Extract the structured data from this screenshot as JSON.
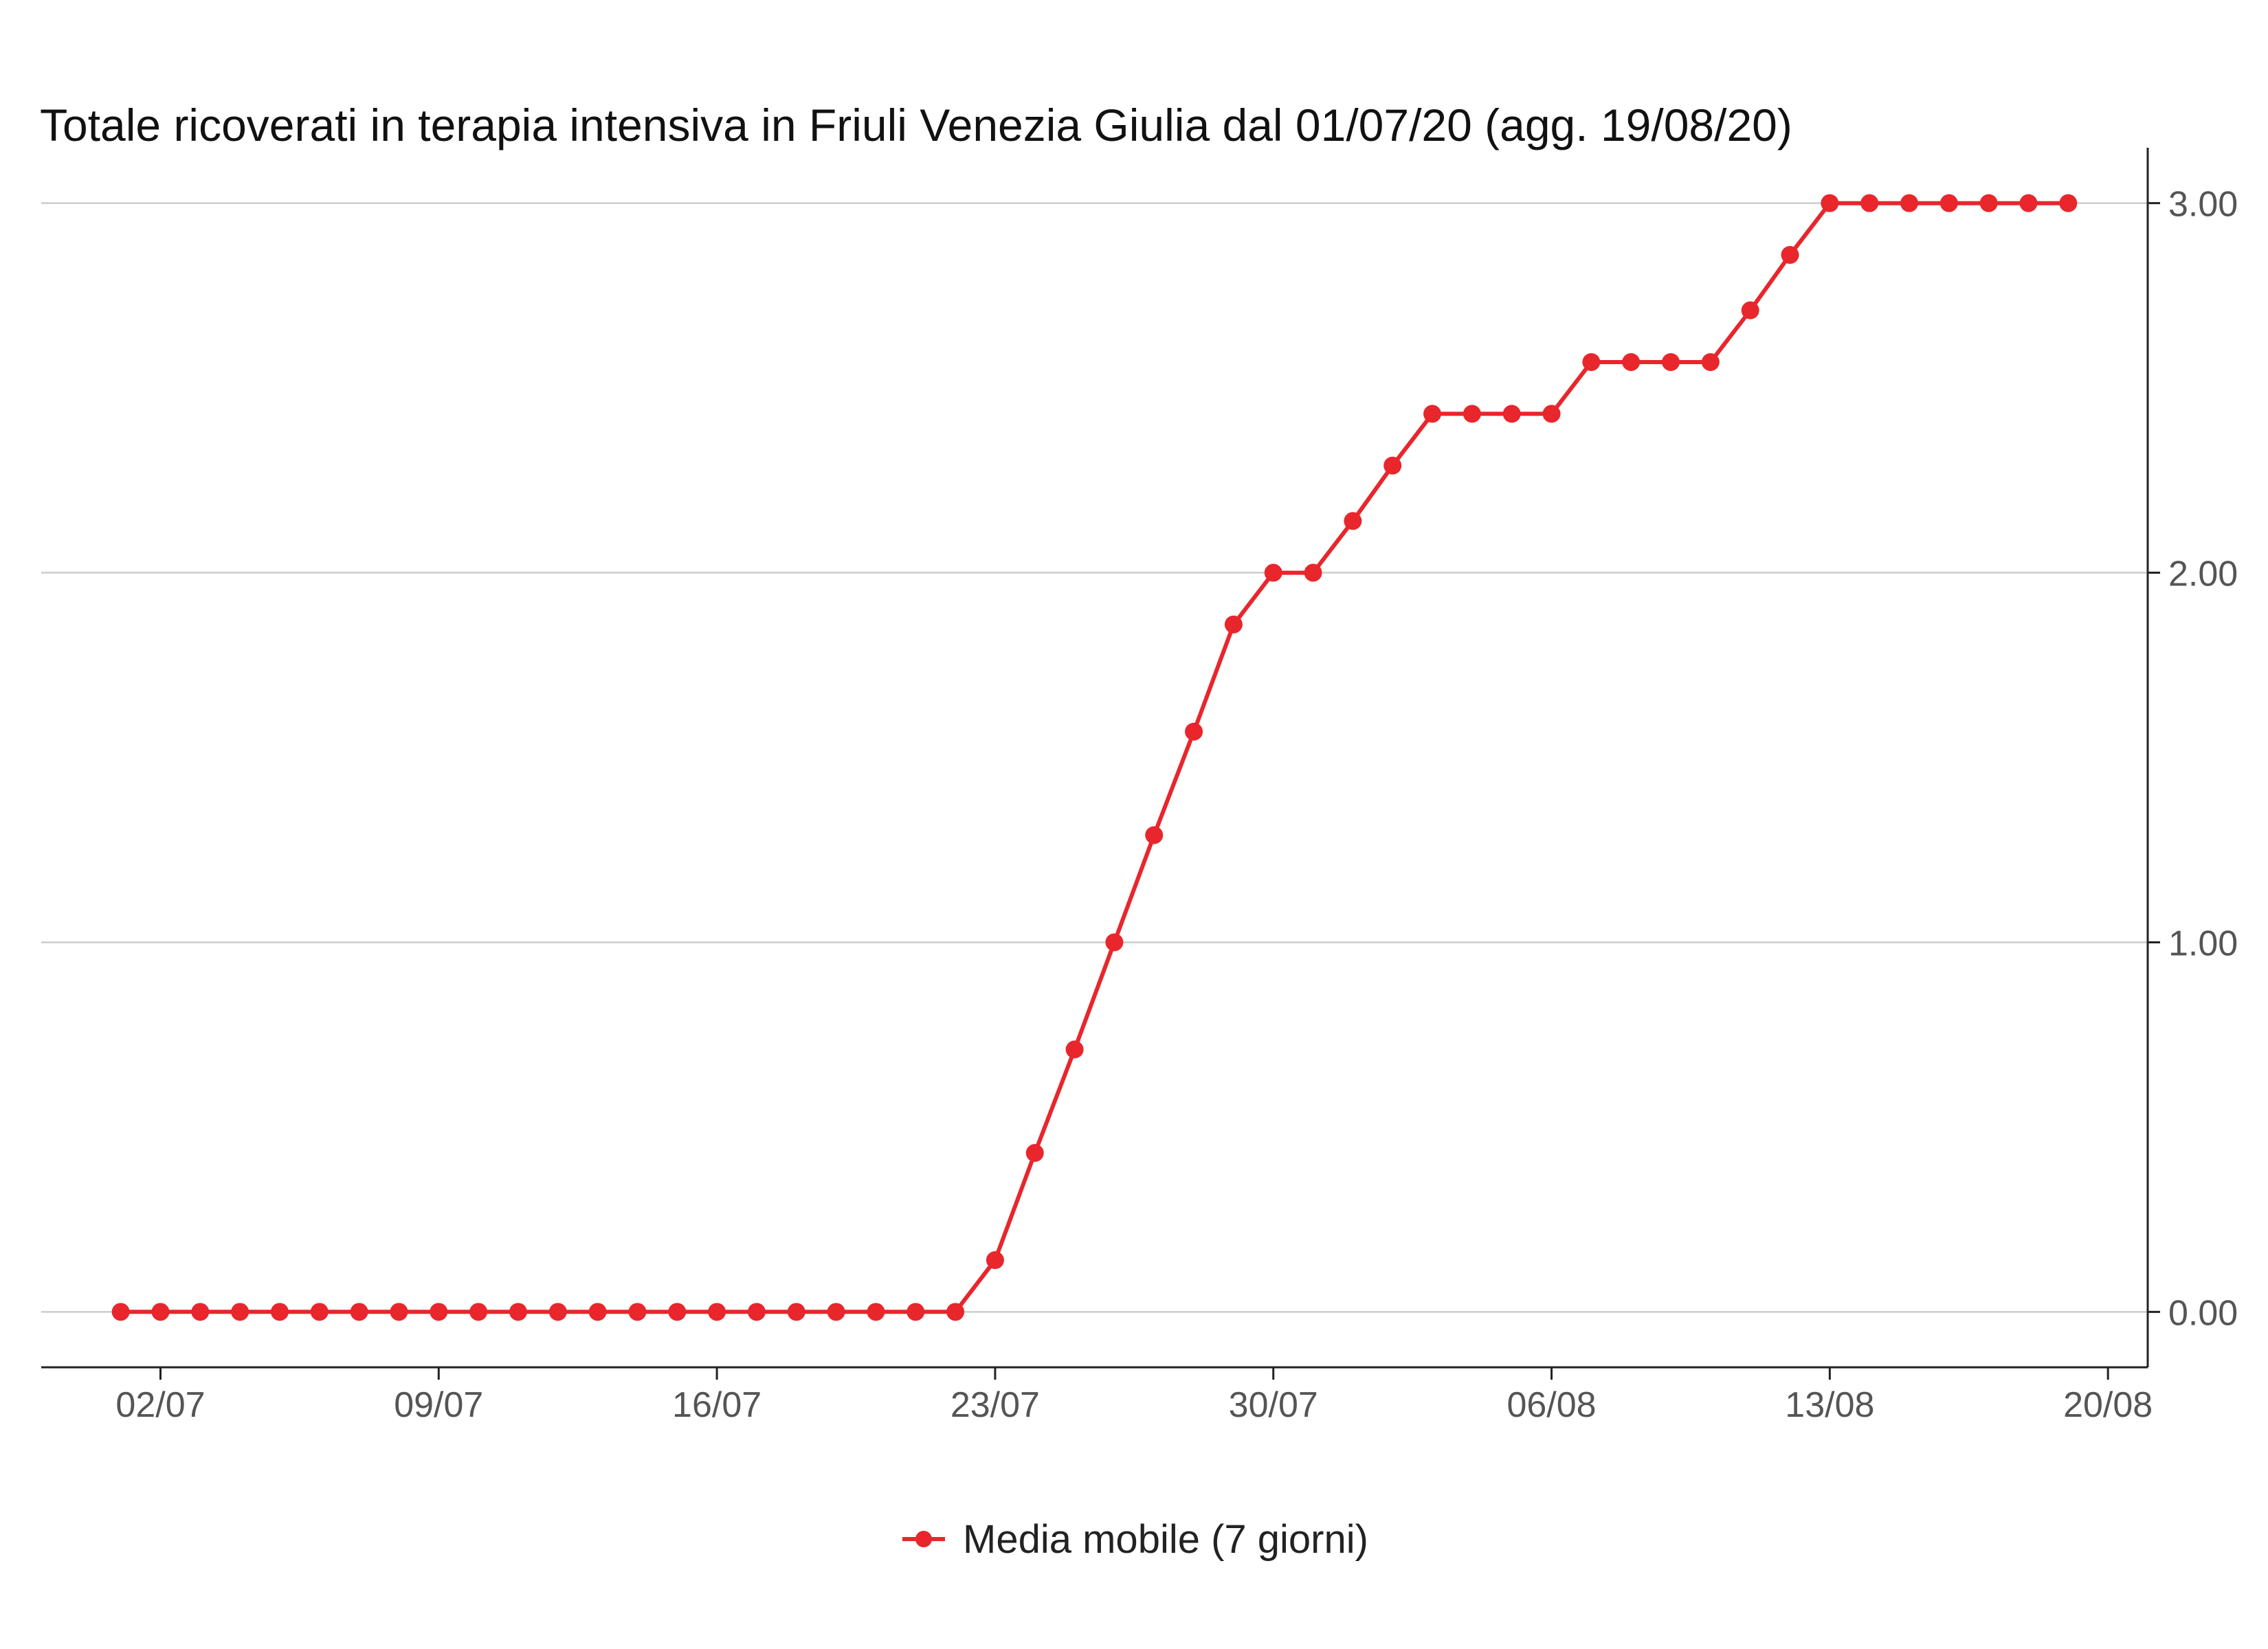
{
  "chart_data": {
    "type": "line",
    "title": "Totale ricoverati in terapia intensiva in Friuli Venezia Giulia dal 01/07/20 (agg. 19/08/20)",
    "xlabel": "",
    "ylabel": "",
    "x_tick_labels": [
      "02/07",
      "09/07",
      "16/07",
      "23/07",
      "30/07",
      "06/08",
      "13/08",
      "20/08"
    ],
    "y_tick_labels": [
      "0.00",
      "1.00",
      "2.00",
      "3.00"
    ],
    "y_ticks": [
      0,
      1,
      2,
      3
    ],
    "ylim": [
      -0.15,
      3.15
    ],
    "xlim": [
      "2020-06-29",
      "2020-08-21"
    ],
    "y_axis_side": "right",
    "grid": "horizontal",
    "legend_position": "bottom",
    "x": [
      "2020-07-01",
      "2020-07-02",
      "2020-07-03",
      "2020-07-04",
      "2020-07-05",
      "2020-07-06",
      "2020-07-07",
      "2020-07-08",
      "2020-07-09",
      "2020-07-10",
      "2020-07-11",
      "2020-07-12",
      "2020-07-13",
      "2020-07-14",
      "2020-07-15",
      "2020-07-16",
      "2020-07-17",
      "2020-07-18",
      "2020-07-19",
      "2020-07-20",
      "2020-07-21",
      "2020-07-22",
      "2020-07-23",
      "2020-07-24",
      "2020-07-25",
      "2020-07-26",
      "2020-07-27",
      "2020-07-28",
      "2020-07-29",
      "2020-07-30",
      "2020-07-31",
      "2020-08-01",
      "2020-08-02",
      "2020-08-03",
      "2020-08-04",
      "2020-08-05",
      "2020-08-06",
      "2020-08-07",
      "2020-08-08",
      "2020-08-09",
      "2020-08-10",
      "2020-08-11",
      "2020-08-12",
      "2020-08-13",
      "2020-08-14",
      "2020-08-15",
      "2020-08-16",
      "2020-08-17",
      "2020-08-18",
      "2020-08-19"
    ],
    "series": [
      {
        "name": "Media mobile (7 giorni)",
        "color": "#e8262c",
        "values": [
          0,
          0,
          0,
          0,
          0,
          0,
          0,
          0,
          0,
          0,
          0,
          0,
          0,
          0,
          0,
          0,
          0,
          0,
          0,
          0,
          0,
          0,
          0.14,
          0.43,
          0.71,
          1.0,
          1.29,
          1.57,
          1.86,
          2.0,
          2.0,
          2.14,
          2.29,
          2.43,
          2.43,
          2.43,
          2.43,
          2.57,
          2.57,
          2.57,
          2.57,
          2.71,
          2.86,
          3.0,
          3.0,
          3.0,
          3.0,
          3.0,
          3.0,
          3.0
        ]
      }
    ]
  }
}
